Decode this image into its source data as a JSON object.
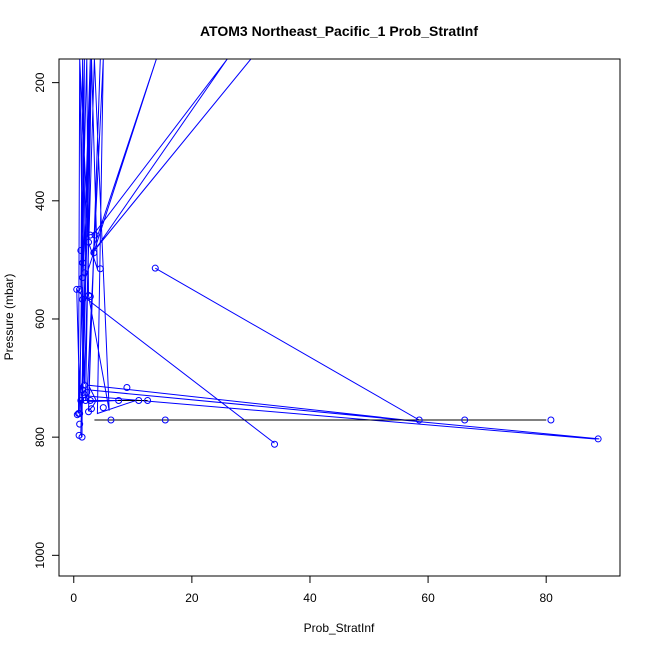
{
  "chart_data": {
    "type": "scatter",
    "title": "ATOM3 Northeast_Pacific_1 Prob_StratInf",
    "xlabel": "Prob_StratInf",
    "ylabel": "Pressure (mbar)",
    "xlim": [
      -2.5,
      92.5
    ],
    "ylim": [
      1035,
      160
    ],
    "y_reversed": true,
    "x_ticks": [
      0,
      20,
      40,
      60,
      80
    ],
    "y_ticks": [
      200,
      400,
      600,
      800,
      1000
    ],
    "grid": false,
    "colors": {
      "series": "#0000ff",
      "connector": "#000000"
    },
    "series": [
      {
        "type": "line",
        "points": [
          [
            1.0,
            160
          ],
          [
            2.5,
            470
          ],
          [
            4.0,
            515
          ],
          [
            3.0,
            160
          ],
          [
            2.0,
            460
          ],
          [
            3.5,
            455
          ],
          [
            26.0,
            160
          ],
          [
            3.8,
            480
          ],
          [
            30.0,
            160
          ],
          [
            3.0,
            490
          ],
          [
            14.0,
            160
          ],
          [
            2.0,
            530
          ],
          [
            1.5,
            160
          ],
          [
            1.2,
            550
          ],
          [
            2.2,
            160
          ],
          [
            2.5,
            560
          ],
          [
            6.0,
            755
          ],
          [
            3.5,
            160
          ],
          [
            1.8,
            710
          ],
          [
            1.0,
            160
          ],
          [
            0.8,
            760
          ],
          [
            2.8,
            160
          ],
          [
            1.2,
            795
          ],
          [
            1.4,
            800
          ],
          [
            1.8,
            160
          ],
          [
            1.0,
            765
          ],
          [
            1.2,
            738
          ],
          [
            2.0,
            738
          ],
          [
            3.0,
            160
          ],
          [
            1.5,
            738
          ],
          [
            12.5,
            738
          ],
          [
            10.5,
            738
          ],
          [
            4.0,
            760
          ],
          [
            5.0,
            160
          ],
          [
            2.2,
            738
          ],
          [
            7.5,
            738
          ],
          [
            2.5,
            740
          ],
          [
            4.5,
            160
          ],
          [
            2.5,
            755
          ],
          [
            3.2,
            748
          ],
          [
            3.8,
            738
          ],
          [
            2.5,
            712
          ],
          [
            58.0,
            773
          ],
          [
            2.5,
            720
          ],
          [
            89.0,
            803
          ],
          [
            88.0,
            803
          ],
          [
            1.8,
            730
          ],
          [
            1.5,
            728
          ],
          [
            1.2,
            712
          ],
          [
            1.0,
            738
          ],
          [
            0.5,
            550
          ],
          [
            1.4,
            560
          ],
          [
            34.0,
            810
          ]
        ]
      },
      {
        "type": "line",
        "points": [
          [
            13.8,
            514
          ],
          [
            58.5,
            771
          ],
          [
            80.0,
            771
          ],
          [
            6.5,
            771
          ],
          [
            15.5,
            771
          ]
        ]
      }
    ],
    "points": [
      [
        1.2,
        484
      ],
      [
        1.5,
        505
      ],
      [
        1.8,
        522
      ],
      [
        1.5,
        530
      ],
      [
        1.0,
        550
      ],
      [
        0.5,
        550
      ],
      [
        2.5,
        470
      ],
      [
        2.8,
        458
      ],
      [
        3.6,
        458
      ],
      [
        3.4,
        488
      ],
      [
        4.5,
        515
      ],
      [
        2.5,
        560
      ],
      [
        2.8,
        562
      ],
      [
        1.5,
        567
      ],
      [
        13.8,
        514
      ],
      [
        58.5,
        771
      ],
      [
        66.2,
        771
      ],
      [
        80.8,
        771
      ],
      [
        88.8,
        803
      ],
      [
        34.0,
        812
      ],
      [
        15.5,
        771
      ],
      [
        6.3,
        771
      ],
      [
        9.0,
        716
      ],
      [
        11.0,
        738
      ],
      [
        12.5,
        738
      ],
      [
        7.6,
        738
      ],
      [
        5.0,
        750
      ],
      [
        3.0,
        752
      ],
      [
        2.5,
        757
      ],
      [
        2.0,
        738
      ],
      [
        2.8,
        738
      ],
      [
        1.8,
        728
      ],
      [
        1.8,
        712
      ],
      [
        1.5,
        720
      ],
      [
        1.2,
        738
      ],
      [
        1.0,
        760
      ],
      [
        0.8,
        760
      ],
      [
        0.6,
        762
      ],
      [
        1.0,
        778
      ],
      [
        0.9,
        797
      ],
      [
        1.4,
        800
      ],
      [
        2.2,
        724
      ]
    ],
    "connector_segments": [
      [
        [
          3.5,
          771
        ],
        [
          80.0,
          771
        ]
      ],
      [
        [
          7.5,
          738
        ],
        [
          12.5,
          738
        ]
      ]
    ]
  }
}
